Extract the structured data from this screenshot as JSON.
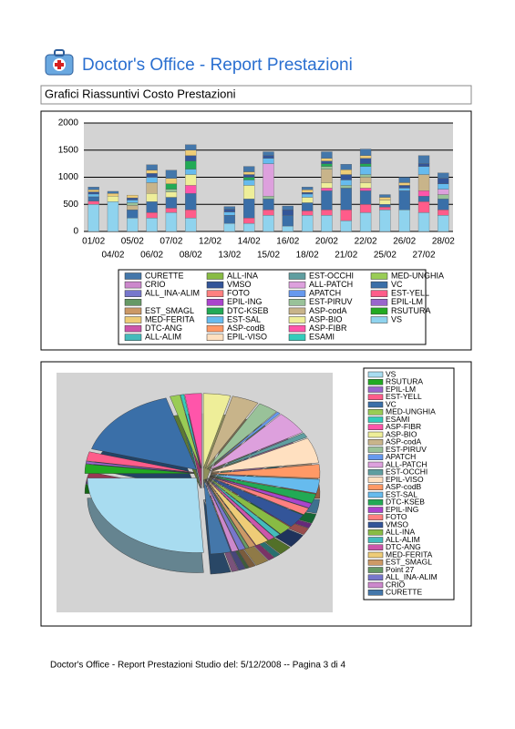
{
  "header": {
    "title": "Doctor's Office - Report Prestazioni",
    "section": "Grafici Riassuntivi Costo Prestazioni"
  },
  "footer": "Doctor's Office - Report Prestazioni Studio del: 5/12/2008 -- Pagina 3 di 4",
  "chart_data": [
    {
      "type": "bar",
      "stacked": true,
      "grid": true,
      "categories": [
        "01/02",
        "04/02",
        "05/02",
        "06/02",
        "07/02",
        "08/02",
        "12/02",
        "13/02",
        "14/02",
        "15/02",
        "16/02",
        "18/02",
        "20/02",
        "21/02",
        "22/02",
        "25/02",
        "26/02",
        "27/02",
        "28/02"
      ],
      "ylim": [
        0,
        2000
      ],
      "yticks": [
        0,
        500,
        1000,
        1500,
        2000
      ],
      "series": [
        {
          "name": "VS",
          "color": "#8fd3ee",
          "values": [
            500,
            550,
            250,
            250,
            350,
            250,
            0,
            150,
            150,
            300,
            100,
            300,
            300,
            200,
            350,
            400,
            400,
            350,
            300
          ]
        },
        {
          "name": "RSUTURA",
          "color": "#22aa22",
          "values": [
            0,
            0,
            0,
            0,
            0,
            0,
            0,
            0,
            0,
            0,
            0,
            0,
            0,
            0,
            0,
            0,
            0,
            0,
            0
          ]
        },
        {
          "name": "EPIL-LM",
          "color": "#9966cc",
          "values": [
            0,
            0,
            0,
            0,
            0,
            0,
            0,
            0,
            0,
            0,
            0,
            0,
            0,
            0,
            0,
            0,
            0,
            0,
            0
          ]
        },
        {
          "name": "EST-YELL",
          "color": "#ff5c8a",
          "values": [
            60,
            0,
            0,
            100,
            80,
            150,
            0,
            0,
            100,
            100,
            0,
            80,
            100,
            200,
            150,
            50,
            0,
            200,
            100
          ]
        },
        {
          "name": "VC",
          "color": "#3a6fa8",
          "values": [
            80,
            0,
            150,
            200,
            200,
            300,
            0,
            150,
            350,
            200,
            200,
            150,
            350,
            400,
            250,
            50,
            350,
            100,
            200
          ]
        },
        {
          "name": "MED-UNGHIA",
          "color": "#99cc55",
          "values": [
            0,
            0,
            0,
            0,
            0,
            0,
            0,
            0,
            0,
            0,
            0,
            0,
            0,
            0,
            0,
            0,
            0,
            0,
            0
          ]
        },
        {
          "name": "ESAMI",
          "color": "#33ccbb",
          "values": [
            0,
            0,
            0,
            0,
            0,
            0,
            0,
            0,
            0,
            0,
            0,
            0,
            0,
            0,
            0,
            0,
            0,
            0,
            0
          ]
        },
        {
          "name": "ASP-FIBR",
          "color": "#ff55aa",
          "values": [
            0,
            0,
            0,
            0,
            0,
            150,
            0,
            0,
            0,
            0,
            0,
            0,
            50,
            0,
            50,
            0,
            0,
            100,
            0
          ]
        },
        {
          "name": "ASP-BIO",
          "color": "#eeee99",
          "values": [
            0,
            100,
            0,
            150,
            100,
            200,
            0,
            0,
            250,
            0,
            0,
            100,
            100,
            0,
            100,
            80,
            0,
            0,
            0
          ]
        },
        {
          "name": "ASP-codA",
          "color": "#c8b48a",
          "values": [
            0,
            0,
            80,
            200,
            0,
            0,
            0,
            0,
            0,
            0,
            0,
            0,
            250,
            0,
            100,
            0,
            0,
            300,
            0
          ]
        },
        {
          "name": "EST-PIRUV",
          "color": "#99c299",
          "values": [
            0,
            0,
            50,
            0,
            50,
            0,
            0,
            0,
            0,
            50,
            0,
            0,
            50,
            50,
            50,
            0,
            0,
            0,
            80
          ]
        },
        {
          "name": "APATCH",
          "color": "#6699ee",
          "values": [
            0,
            0,
            0,
            0,
            0,
            0,
            0,
            0,
            0,
            0,
            0,
            0,
            0,
            0,
            0,
            0,
            0,
            0,
            0
          ]
        },
        {
          "name": "ALL-PATCH",
          "color": "#dda0dd",
          "values": [
            0,
            0,
            0,
            0,
            0,
            0,
            0,
            0,
            0,
            600,
            0,
            0,
            0,
            0,
            0,
            0,
            0,
            0,
            100
          ]
        },
        {
          "name": "EST-OCCHI",
          "color": "#5f9ea0",
          "values": [
            0,
            0,
            0,
            0,
            0,
            0,
            0,
            0,
            0,
            0,
            0,
            0,
            0,
            0,
            0,
            0,
            0,
            0,
            0
          ]
        },
        {
          "name": "EPIL-VISO",
          "color": "#ffe0c0",
          "values": [
            0,
            0,
            0,
            0,
            0,
            0,
            0,
            0,
            0,
            0,
            0,
            0,
            0,
            0,
            0,
            0,
            0,
            0,
            0
          ]
        },
        {
          "name": "ASP-codB",
          "color": "#ff9966",
          "values": [
            0,
            0,
            0,
            0,
            0,
            0,
            0,
            0,
            0,
            0,
            0,
            0,
            0,
            0,
            0,
            0,
            0,
            0,
            0
          ]
        },
        {
          "name": "EST-SAL",
          "color": "#66bbee",
          "values": [
            50,
            0,
            50,
            100,
            0,
            100,
            0,
            60,
            100,
            100,
            0,
            60,
            0,
            100,
            150,
            0,
            50,
            150,
            100
          ]
        },
        {
          "name": "DTC-KSEB",
          "color": "#22aa55",
          "values": [
            0,
            0,
            0,
            0,
            100,
            150,
            0,
            0,
            50,
            0,
            0,
            0,
            50,
            0,
            50,
            0,
            0,
            0,
            0
          ]
        },
        {
          "name": "EPIL-ING",
          "color": "#aa44cc",
          "values": [
            0,
            0,
            0,
            0,
            0,
            0,
            0,
            0,
            0,
            0,
            0,
            0,
            0,
            0,
            0,
            0,
            0,
            0,
            0
          ]
        },
        {
          "name": "FOTO",
          "color": "#ff8080",
          "values": [
            0,
            0,
            0,
            0,
            0,
            0,
            0,
            0,
            0,
            0,
            0,
            0,
            0,
            0,
            0,
            0,
            0,
            0,
            0
          ]
        },
        {
          "name": "VMSO",
          "color": "#335599",
          "values": [
            40,
            0,
            40,
            70,
            0,
            100,
            0,
            50,
            50,
            50,
            100,
            30,
            50,
            100,
            100,
            0,
            50,
            50,
            100
          ]
        },
        {
          "name": "ALL-INA",
          "color": "#88bb44",
          "values": [
            0,
            0,
            0,
            0,
            0,
            0,
            0,
            0,
            0,
            0,
            0,
            0,
            0,
            0,
            0,
            0,
            0,
            0,
            0
          ]
        },
        {
          "name": "ALL-ALIM",
          "color": "#44bbbb",
          "values": [
            0,
            0,
            0,
            0,
            0,
            0,
            0,
            0,
            0,
            0,
            0,
            0,
            0,
            0,
            0,
            0,
            0,
            0,
            0
          ]
        },
        {
          "name": "DTC-ANG",
          "color": "#cc55aa",
          "values": [
            0,
            0,
            0,
            0,
            0,
            0,
            0,
            0,
            0,
            0,
            0,
            0,
            0,
            0,
            0,
            0,
            0,
            0,
            0
          ]
        },
        {
          "name": "MED-FERITA",
          "color": "#eecc77",
          "values": [
            40,
            50,
            50,
            60,
            100,
            100,
            0,
            0,
            50,
            0,
            0,
            50,
            50,
            90,
            50,
            50,
            50,
            0,
            0
          ]
        },
        {
          "name": "EST_SMAGL",
          "color": "#cc9966",
          "values": [
            0,
            0,
            0,
            0,
            0,
            0,
            0,
            0,
            0,
            0,
            0,
            0,
            0,
            0,
            0,
            0,
            0,
            0,
            0
          ]
        },
        {
          "name": null,
          "color": "#669966",
          "values": [
            0,
            0,
            0,
            0,
            0,
            0,
            0,
            0,
            0,
            0,
            0,
            0,
            0,
            0,
            0,
            0,
            0,
            0,
            0
          ]
        },
        {
          "name": "ALL_INA-ALIM",
          "color": "#7777cc",
          "values": [
            0,
            0,
            0,
            0,
            0,
            0,
            0,
            0,
            0,
            0,
            0,
            0,
            0,
            0,
            0,
            0,
            0,
            0,
            0
          ]
        },
        {
          "name": "CRIO",
          "color": "#cc88cc",
          "values": [
            0,
            0,
            0,
            0,
            0,
            0,
            0,
            0,
            0,
            0,
            0,
            0,
            0,
            0,
            0,
            0,
            0,
            0,
            0
          ]
        },
        {
          "name": "CURETTE",
          "color": "#4477aa",
          "values": [
            50,
            40,
            0,
            100,
            150,
            100,
            0,
            50,
            100,
            70,
            70,
            50,
            120,
            100,
            120,
            50,
            100,
            150,
            100
          ]
        }
      ]
    },
    {
      "type": "pie",
      "categories": [
        "VS",
        "RSUTURA",
        "EPIL-LM",
        "EST-YELL",
        "VC",
        "MED-UNGHIA",
        "ESAMI",
        "ASP-FIBR",
        "ASP-BIO",
        "ASP-codA",
        "EST-PIRUV",
        "APATCH",
        "ALL-PATCH",
        "EST-OCCHI",
        "EPIL-VISO",
        "ASP-codB",
        "EST-SAL",
        "DTC-KSEB",
        "EPIL-ING",
        "FOTO",
        "VMSO",
        "ALL-INA",
        "ALL-ALIM",
        "DTC-ANG",
        "MED-FERITA",
        "EST_SMAGL",
        "Point 27",
        "ALL_INA-ALIM",
        "CRIO",
        "CURETTE"
      ],
      "values": [
        26,
        2,
        0.5,
        2,
        16,
        1.5,
        0.5,
        2.5,
        4,
        4,
        3,
        0.5,
        5,
        1,
        5.5,
        3,
        3,
        2,
        1,
        1.5,
        3,
        2,
        1,
        1,
        2,
        1,
        0.5,
        1,
        1,
        3
      ],
      "colors": [
        "#a8dcf0",
        "#22aa22",
        "#9966cc",
        "#ff5c8a",
        "#3a6fa8",
        "#99cc55",
        "#33ccbb",
        "#ff55aa",
        "#eeee99",
        "#c8b48a",
        "#99c299",
        "#6699ee",
        "#dda0dd",
        "#5f9ea0",
        "#ffe0c0",
        "#ff9966",
        "#66bbee",
        "#22aa55",
        "#aa44cc",
        "#ff8080",
        "#335599",
        "#88bb44",
        "#44bbbb",
        "#cc55aa",
        "#eecc77",
        "#cc9966",
        "#669966",
        "#7777cc",
        "#cc88cc",
        "#4477aa"
      ]
    }
  ]
}
